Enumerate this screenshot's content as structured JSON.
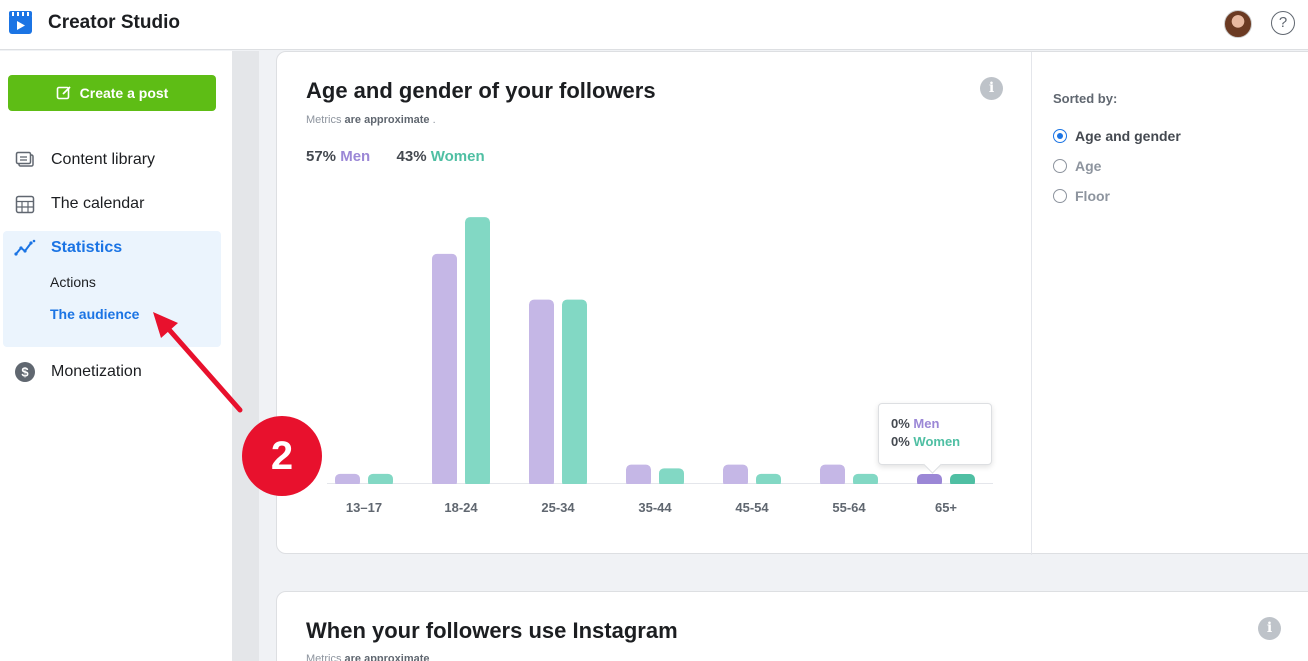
{
  "app": {
    "title": "Creator Studio"
  },
  "header": {
    "help_glyph": "?"
  },
  "sidebar": {
    "create_button": "Create a post",
    "items": [
      {
        "label": "Content library",
        "icon": "content-library-icon"
      },
      {
        "label": "The calendar",
        "icon": "calendar-icon"
      },
      {
        "label": "Statistics",
        "icon": "statistics-icon",
        "active": true,
        "sub_items": [
          {
            "label": "Actions"
          },
          {
            "label": "The audience",
            "active": true
          }
        ]
      },
      {
        "label": "Monetization",
        "icon": "dollar-icon"
      }
    ]
  },
  "card1": {
    "title": "Age and gender of your followers",
    "sub_prefix": "Metrics",
    "sub_bold": "are approximate",
    "sub_suffix": ".",
    "info_glyph": "i",
    "men_pct": "57%",
    "men_label": "Men",
    "women_pct": "43%",
    "women_label": "Women",
    "tooltip": {
      "men_pct": "0%",
      "men_label": "Men",
      "women_pct": "0%",
      "women_label": "Women"
    }
  },
  "sort": {
    "title": "Sorted by:",
    "options": [
      {
        "label": "Age and gender",
        "selected": true
      },
      {
        "label": "Age",
        "selected": false
      },
      {
        "label": "Floor",
        "selected": false
      }
    ]
  },
  "card2": {
    "title": "When your followers use Instagram",
    "sub_prefix": "Metrics",
    "sub_bold": "are approximate",
    "info_glyph": "i"
  },
  "annotation": {
    "step": "2",
    "color": "#e8112d"
  },
  "colors": {
    "men": "#c5b7e6",
    "women": "#82d8c4",
    "men_active": "#9b87d6",
    "women_active": "#4fbfa3",
    "accent": "#1b74e4",
    "create": "#5ebd15"
  },
  "chart_data": {
    "type": "bar",
    "categories": [
      "13–17",
      "18-24",
      "25-34",
      "35-44",
      "45-54",
      "55-64",
      "65+"
    ],
    "series": [
      {
        "name": "Men",
        "values": [
          0.5,
          12.5,
          10,
          1,
          1,
          1,
          0
        ]
      },
      {
        "name": "Women",
        "values": [
          0.5,
          14.5,
          10,
          0.8,
          0.5,
          0.5,
          0
        ]
      }
    ],
    "ylim": [
      0,
      15
    ],
    "grid": false
  }
}
